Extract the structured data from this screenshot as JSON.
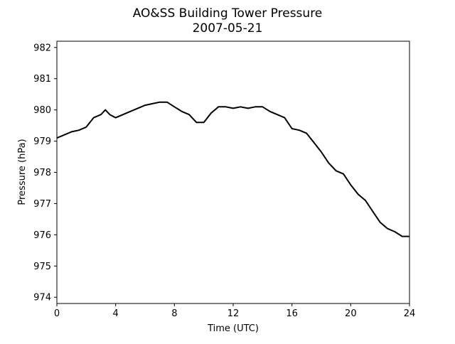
{
  "chart_data": {
    "type": "line",
    "title": "AO&SS Building Tower Pressure",
    "subtitle": "2007-05-21",
    "xlabel": "Time (UTC)",
    "ylabel": "Pressure (hPa)",
    "xlim": [
      0,
      24
    ],
    "ylim": [
      973.8,
      982.2
    ],
    "xticks": [
      0,
      4,
      8,
      12,
      16,
      20,
      24
    ],
    "yticks": [
      974,
      975,
      976,
      977,
      978,
      979,
      980,
      981,
      982
    ],
    "grid": false,
    "legend": "none",
    "line_color": "#000000",
    "series": [
      {
        "x": [
          0,
          0.5,
          1.0,
          1.5,
          2.0,
          2.5,
          3.0,
          3.3,
          3.6,
          4.0,
          4.5,
          5.0,
          5.5,
          6.0,
          6.5,
          7.0,
          7.5,
          8.0,
          8.5,
          9.0,
          9.5,
          10.0,
          10.5,
          11.0,
          11.5,
          12.0,
          12.5,
          13.0,
          13.5,
          14.0,
          14.5,
          15.0,
          15.5,
          16.0,
          16.5,
          17.0,
          17.5,
          18.0,
          18.5,
          19.0,
          19.5,
          20.0,
          20.5,
          21.0,
          21.5,
          22.0,
          22.5,
          23.0,
          23.5,
          24.0
        ],
        "y": [
          979.1,
          979.2,
          979.3,
          979.35,
          979.45,
          979.75,
          979.85,
          980.0,
          979.85,
          979.75,
          979.85,
          979.95,
          980.05,
          980.15,
          980.2,
          980.25,
          980.25,
          980.1,
          979.95,
          979.85,
          979.6,
          979.6,
          979.9,
          980.1,
          980.1,
          980.05,
          980.1,
          980.05,
          980.1,
          980.1,
          979.95,
          979.85,
          979.75,
          979.4,
          979.35,
          979.25,
          978.95,
          978.65,
          978.3,
          978.05,
          977.95,
          977.6,
          977.3,
          977.1,
          976.75,
          976.4,
          976.2,
          976.1,
          975.95,
          975.95
        ]
      }
    ]
  }
}
